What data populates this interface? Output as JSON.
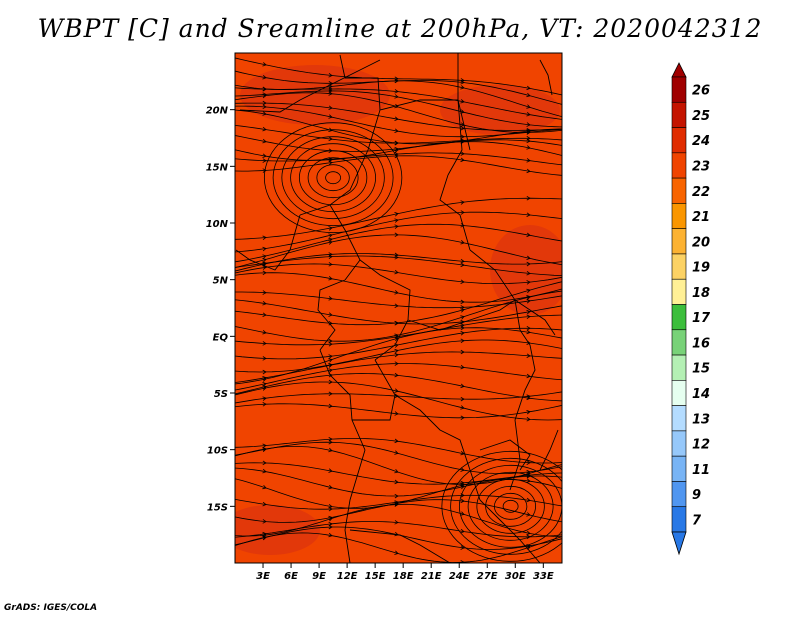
{
  "title": "WBPT [C] and Sreamline at 200hPa, VT: 2020042312",
  "credit": "GrADS: IGES/COLA",
  "map": {
    "lon_range": [
      0,
      35
    ],
    "lat_range": [
      -20,
      25
    ],
    "lat_ticks": [
      {
        "value": 20,
        "label": "20N"
      },
      {
        "value": 15,
        "label": "15N"
      },
      {
        "value": 10,
        "label": "10N"
      },
      {
        "value": 5,
        "label": "5N"
      },
      {
        "value": 0,
        "label": "EQ"
      },
      {
        "value": -5,
        "label": "5S"
      },
      {
        "value": -10,
        "label": "10S"
      },
      {
        "value": -15,
        "label": "15S"
      }
    ],
    "lon_ticks": [
      {
        "value": 3,
        "label": "3E"
      },
      {
        "value": 6,
        "label": "6E"
      },
      {
        "value": 9,
        "label": "9E"
      },
      {
        "value": 12,
        "label": "12E"
      },
      {
        "value": 15,
        "label": "15E"
      },
      {
        "value": 18,
        "label": "18E"
      },
      {
        "value": 21,
        "label": "21E"
      },
      {
        "value": 24,
        "label": "24E"
      },
      {
        "value": 27,
        "label": "27E"
      },
      {
        "value": 30,
        "label": "30E"
      },
      {
        "value": 33,
        "label": "33E"
      }
    ],
    "field_color": "#f04400",
    "warm_patch_color": "#d83010",
    "vortices": [
      {
        "name": "vortex-north",
        "lon": 10.5,
        "lat": 14
      },
      {
        "name": "vortex-south",
        "lon": 29.5,
        "lat": -15
      }
    ]
  },
  "colorbar": {
    "levels": [
      {
        "label": "26",
        "color": "#a00000"
      },
      {
        "label": "25",
        "color": "#c41400"
      },
      {
        "label": "24",
        "color": "#e02c00"
      },
      {
        "label": "23",
        "color": "#f04400"
      },
      {
        "label": "22",
        "color": "#f86400"
      },
      {
        "label": "21",
        "color": "#fa9600"
      },
      {
        "label": "20",
        "color": "#fcb232"
      },
      {
        "label": "19",
        "color": "#fcd264"
      },
      {
        "label": "18",
        "color": "#fff096"
      },
      {
        "label": "17",
        "color": "#3cbe3c"
      },
      {
        "label": "16",
        "color": "#78d278"
      },
      {
        "label": "15",
        "color": "#b4f0b4"
      },
      {
        "label": "14",
        "color": "#e6fff0"
      },
      {
        "label": "13",
        "color": "#b4dcff"
      },
      {
        "label": "12",
        "color": "#96c8fa"
      },
      {
        "label": "11",
        "color": "#78b4f5"
      },
      {
        "label": "9",
        "color": "#5096f0"
      },
      {
        "label": "7",
        "color": "#2878e6"
      }
    ]
  }
}
